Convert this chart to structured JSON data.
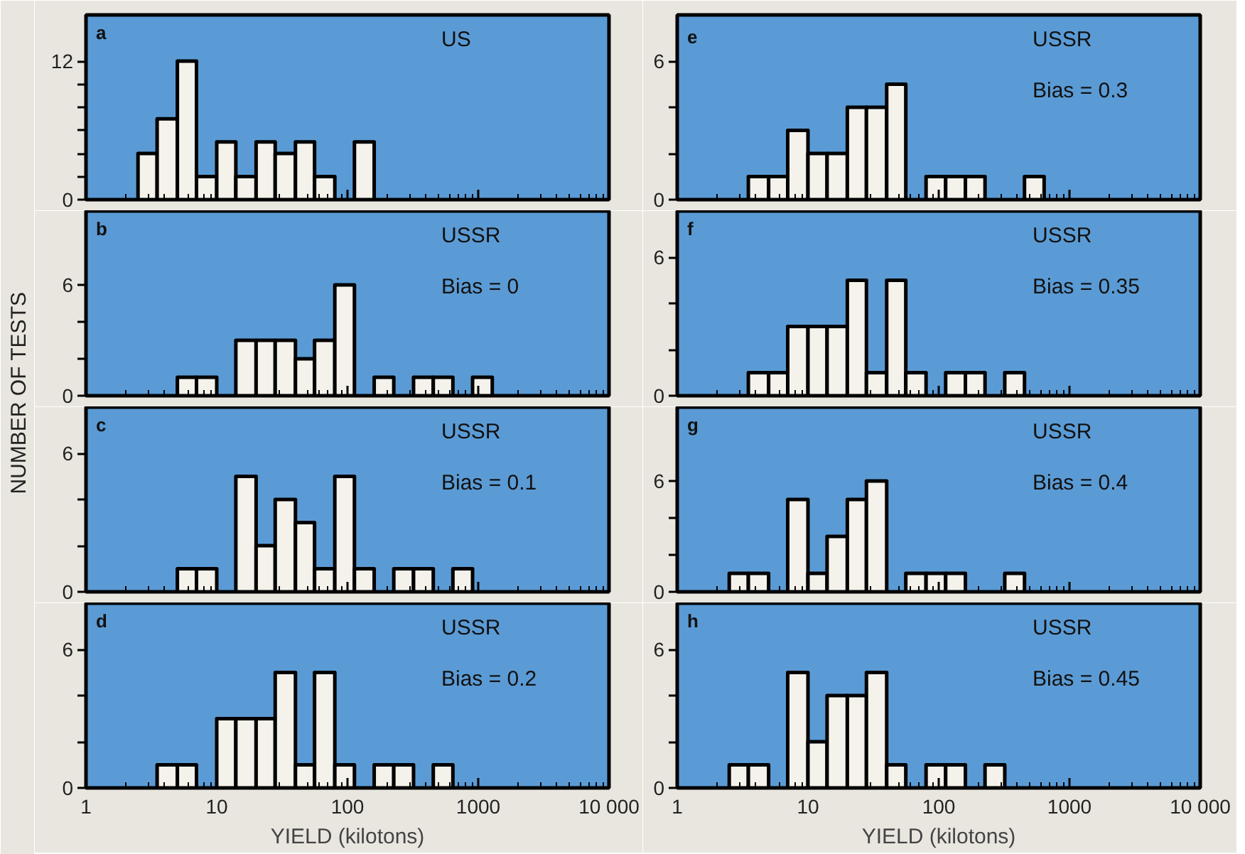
{
  "chart_data": [
    {
      "type": "histogram",
      "ylabel": "NUMBER OF TESTS",
      "annotations": [
        "a",
        "US"
      ],
      "bins": [
        2.5,
        3.5,
        5,
        7,
        10,
        14,
        20,
        28,
        40,
        56,
        80,
        113,
        160
      ],
      "values": [
        4,
        7,
        12,
        2,
        5,
        2,
        5,
        4,
        5,
        2,
        0,
        5
      ],
      "color": "#f4f2ea",
      "log": "x",
      "xlim": [
        1,
        10000
      ],
      "xticks": [
        1,
        10,
        100,
        1000
      ],
      "ylim": [
        0,
        16
      ],
      "yticks": [
        0,
        {
          "value": 2,
          "label": null
        },
        {
          "value": 4,
          "label": null
        },
        {
          "value": 6,
          "label": null
        },
        {
          "value": 8,
          "label": null
        },
        {
          "value": 10,
          "label": null
        },
        12
      ],
      "tick_labels": "y"
    },
    {
      "type": "histogram",
      "annotations": [
        "b",
        "USSR",
        "Bias = 0"
      ],
      "bins": [
        5,
        7,
        10,
        14,
        20,
        28,
        40,
        56,
        80,
        113,
        160,
        226,
        320,
        453,
        640,
        905,
        1280
      ],
      "values": [
        1,
        1,
        0,
        3,
        3,
        3,
        2,
        3,
        6,
        0,
        1,
        0,
        1,
        1,
        0,
        1
      ],
      "color": "#f4f2ea",
      "log": "x",
      "xlim": [
        1,
        10000
      ],
      "xticks": [
        1,
        10,
        100,
        1000
      ],
      "ylim": [
        0,
        10
      ],
      "yticks": [
        0,
        {
          "value": 2,
          "label": null
        },
        {
          "value": 4,
          "label": null
        },
        6
      ],
      "tick_labels": "y"
    },
    {
      "type": "histogram",
      "annotations": [
        "c",
        "USSR",
        "Bias = 0.1"
      ],
      "bins": [
        5,
        7,
        10,
        14,
        20,
        28,
        40,
        56,
        80,
        113,
        160,
        226,
        320,
        453,
        640,
        905
      ],
      "values": [
        1,
        1,
        0,
        5,
        2,
        4,
        3,
        1,
        5,
        1,
        0,
        1,
        1,
        0,
        1
      ],
      "color": "#f4f2ea",
      "log": "x",
      "xlim": [
        1,
        10000
      ],
      "xticks": [
        1,
        10,
        100,
        1000
      ],
      "ylim": [
        0,
        8
      ],
      "yticks": [
        0,
        {
          "value": 2,
          "label": null
        },
        {
          "value": 4,
          "label": null
        },
        6
      ],
      "tick_labels": "y"
    },
    {
      "type": "histogram",
      "annotations": [
        "d",
        "USSR",
        "Bias = 0.2"
      ],
      "xlabel": "YIELD (kilotons)",
      "bins": [
        3.5,
        5,
        7,
        10,
        14,
        20,
        28,
        40,
        56,
        80,
        113,
        160,
        226,
        320,
        453,
        640
      ],
      "values": [
        1,
        1,
        0,
        3,
        3,
        3,
        5,
        1,
        5,
        1,
        0,
        1,
        1,
        0,
        1
      ],
      "color": "#f4f2ea",
      "log": "x",
      "xlim": [
        1,
        10000
      ],
      "xticks": [
        1,
        10,
        100,
        1000,
        {
          "value": 10000,
          "label": "10 000"
        }
      ],
      "ylim": [
        0,
        8
      ],
      "yticks": [
        0,
        {
          "value": 2,
          "label": null
        },
        {
          "value": 4,
          "label": null
        },
        6
      ]
    },
    {
      "type": "histogram",
      "annotations": [
        "e",
        "USSR",
        "Bias = 0.3"
      ],
      "bins": [
        3.5,
        5,
        7,
        10,
        14,
        20,
        28,
        40,
        56,
        80,
        113,
        160,
        226,
        453,
        640
      ],
      "values": [
        1,
        1,
        3,
        2,
        2,
        4,
        4,
        5,
        0,
        1,
        1,
        1,
        0,
        1
      ],
      "color": "#f4f2ea",
      "log": "x",
      "xlim": [
        1,
        10000
      ],
      "xticks": [
        1,
        10,
        100,
        1000
      ],
      "ylim": [
        0,
        8
      ],
      "yticks": [
        0,
        {
          "value": 2,
          "label": null
        },
        {
          "value": 4,
          "label": null
        },
        6
      ],
      "tick_labels": "y"
    },
    {
      "type": "histogram",
      "annotations": [
        "f",
        "USSR",
        "Bias = 0.35"
      ],
      "bins": [
        3.5,
        5,
        7,
        10,
        14,
        20,
        28,
        40,
        56,
        80,
        113,
        160,
        226,
        320,
        453
      ],
      "values": [
        1,
        1,
        3,
        3,
        3,
        5,
        1,
        5,
        1,
        0,
        1,
        1,
        0,
        1
      ],
      "color": "#f4f2ea",
      "log": "x",
      "xlim": [
        1,
        10000
      ],
      "xticks": [
        1,
        10,
        100,
        1000
      ],
      "ylim": [
        0,
        8
      ],
      "yticks": [
        0,
        {
          "value": 2,
          "label": null
        },
        {
          "value": 4,
          "label": null
        },
        6
      ],
      "tick_labels": "y"
    },
    {
      "type": "histogram",
      "annotations": [
        "g",
        "USSR",
        "Bias = 0.4"
      ],
      "bins": [
        2.5,
        3.5,
        5,
        7,
        10,
        14,
        20,
        28,
        40,
        56,
        80,
        113,
        160,
        320,
        453
      ],
      "values": [
        1,
        1,
        0,
        5,
        1,
        3,
        5,
        6,
        0,
        1,
        1,
        1,
        0,
        1
      ],
      "color": "#f4f2ea",
      "log": "x",
      "xlim": [
        1,
        10000
      ],
      "xticks": [
        1,
        10,
        100,
        1000
      ],
      "ylim": [
        0,
        10
      ],
      "yticks": [
        0,
        {
          "value": 2,
          "label": null
        },
        {
          "value": 4,
          "label": null
        },
        6
      ],
      "tick_labels": "y"
    },
    {
      "type": "histogram",
      "annotations": [
        "h",
        "USSR",
        "Bias = 0.45"
      ],
      "xlabel": "YIELD (kilotons)",
      "bins": [
        2.5,
        3.5,
        5,
        7,
        10,
        14,
        20,
        28,
        40,
        56,
        80,
        113,
        160,
        226,
        320
      ],
      "values": [
        1,
        1,
        0,
        5,
        2,
        4,
        4,
        5,
        1,
        0,
        1,
        1,
        0,
        1
      ],
      "color": "#f4f2ea",
      "log": "x",
      "xlim": [
        1,
        10000
      ],
      "xticks": [
        1,
        10,
        100,
        1000,
        {
          "value": 10000,
          "label": "10 000"
        }
      ],
      "ylim": [
        0,
        8
      ],
      "yticks": [
        0,
        {
          "value": 2,
          "label": null
        },
        {
          "value": 4,
          "label": null
        },
        6
      ]
    }
  ]
}
